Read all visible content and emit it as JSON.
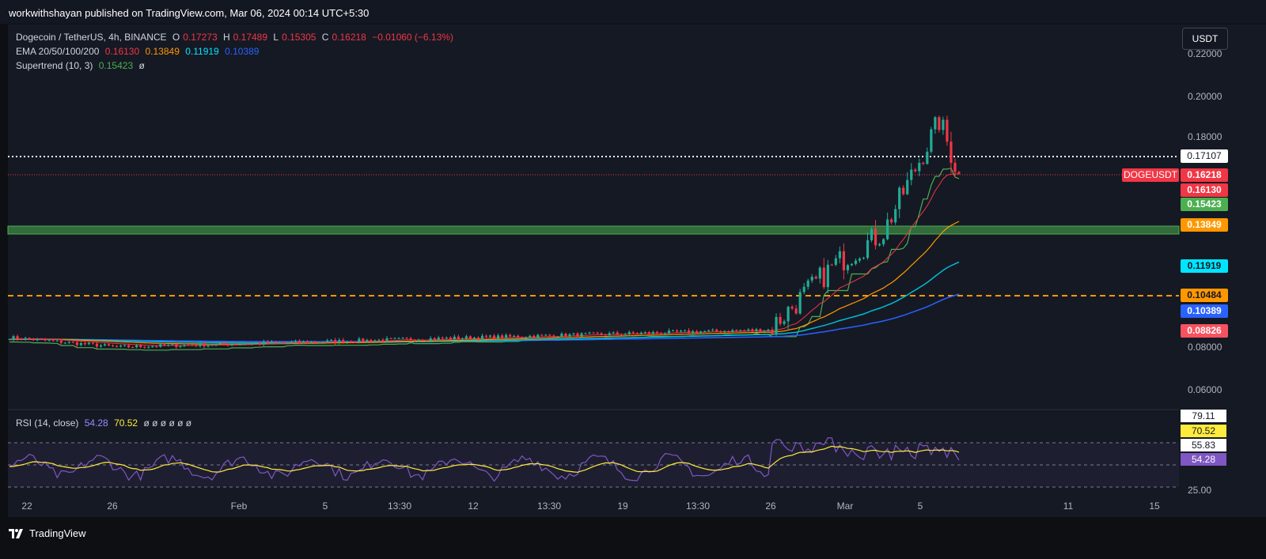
{
  "publisher": "workwithshayan published on TradingView.com, Mar 06, 2024 00:14 UTC+5:30",
  "legend": {
    "title": "Dogecoin / TetherUS, 4h, BINANCE",
    "o_label": "O",
    "o": "0.17273",
    "h_label": "H",
    "h": "0.17489",
    "l_label": "L",
    "l": "0.15305",
    "c_label": "C",
    "c": "0.16218",
    "change": "−0.01060 (−6.13%)",
    "ema_label": "EMA 20/50/100/200",
    "ema20": "0.16130",
    "ema50": "0.13849",
    "ema100": "0.11919",
    "ema200": "0.10389",
    "st_label": "Supertrend (10, 3)",
    "st": "0.15423",
    "st_na": "ø",
    "rsi_label": "RSI (14, close)",
    "rsi": "54.28",
    "rsi_ma": "70.52",
    "rsi_na": "ø ø ø ø ø ø"
  },
  "currency_button": "USDT",
  "price_axis": [
    "0.22000",
    "0.20000",
    "0.18000",
    "0.08000",
    "0.06000"
  ],
  "price_tags": {
    "crosshair": "0.17107",
    "symbol": "DOGEUSDT",
    "last": "0.16218",
    "ema20": "0.16130",
    "supertrend": "0.15423",
    "ema50": "0.13849",
    "ema100": "0.11919",
    "level": "0.10484",
    "ema200": "0.10389",
    "other": "0.08826"
  },
  "rsi_axis": {
    "high": "79.11",
    "ma": "70.52",
    "mid": "55.83",
    "value": "54.28",
    "low": "25.00"
  },
  "time_axis": [
    "22",
    "26",
    "Feb",
    "5",
    "13:30",
    "12",
    "13:30",
    "19",
    "13:30",
    "26",
    "Mar",
    "5",
    "11",
    "15"
  ],
  "brand": "TradingView",
  "colors": {
    "up": "#22ab94",
    "down": "#f23645",
    "ema20": "#f23645",
    "ema50": "#ff9800",
    "ema100": "#00bcd4",
    "ema200": "#2962ff",
    "supertrend_up": "#4caf50",
    "rsi": "#7e57c2",
    "rsi_ma": "#ffeb3b",
    "support_zone": "#4caf50"
  }
}
